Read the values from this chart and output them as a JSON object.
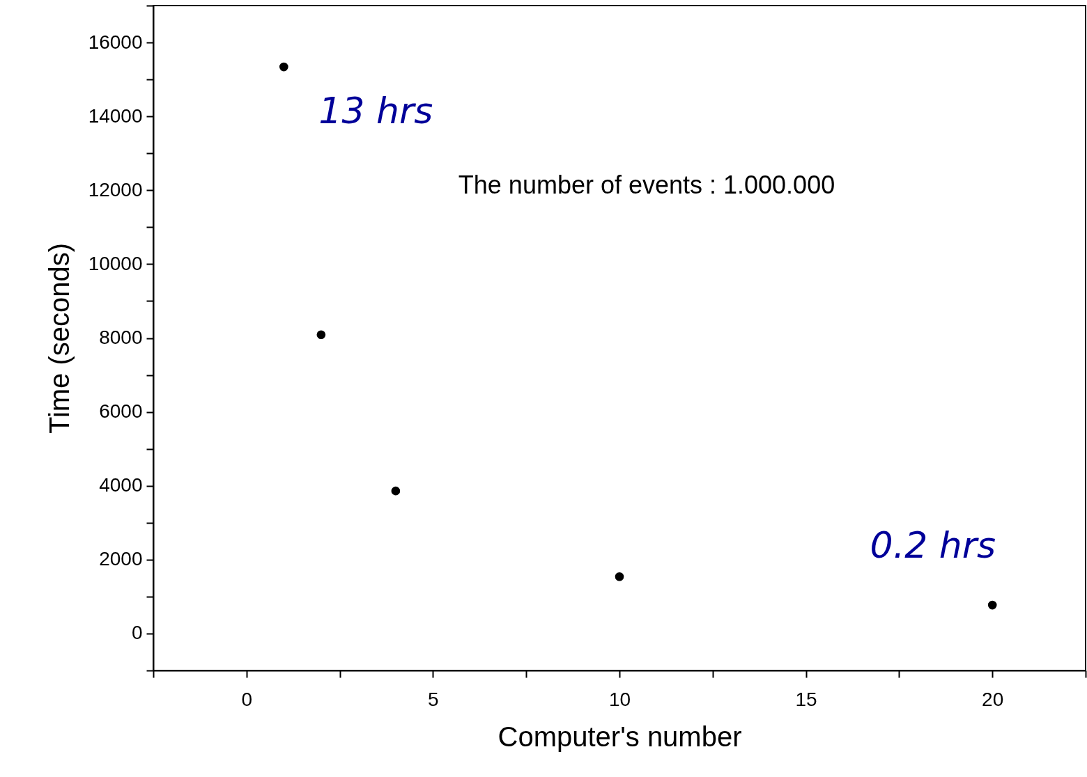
{
  "chart_data": {
    "type": "scatter",
    "xlabel": "Computer's number",
    "ylabel": "Time (seconds)",
    "x": [
      1,
      2,
      4,
      10,
      20
    ],
    "series": [
      {
        "color": "#000000",
        "values": [
          15340,
          8090,
          3860,
          1540,
          770
        ]
      }
    ],
    "marker": "circle",
    "grid": false,
    "xlim": [
      -2.5,
      22.5
    ],
    "ylim": [
      -1000,
      17000
    ],
    "xticks": [
      {
        "value": -2.5,
        "label": null
      },
      0,
      {
        "value": 2.5,
        "label": null
      },
      5,
      {
        "value": 7.5,
        "label": null
      },
      10,
      {
        "value": 12.5,
        "label": null
      },
      15,
      {
        "value": 17.5,
        "label": null
      },
      20,
      {
        "value": 22.5,
        "label": null
      }
    ],
    "yticks": [
      {
        "value": -1000,
        "label": null
      },
      0,
      {
        "value": 1000,
        "label": null
      },
      2000,
      {
        "value": 3000,
        "label": null
      },
      4000,
      {
        "value": 5000,
        "label": null
      },
      6000,
      {
        "value": 7000,
        "label": null
      },
      8000,
      {
        "value": 9000,
        "label": null
      },
      10000,
      {
        "value": 11000,
        "label": null
      },
      12000,
      {
        "value": 13000,
        "label": null
      },
      14000,
      {
        "value": 15000,
        "label": null
      },
      16000,
      {
        "value": 17000,
        "label": null
      }
    ],
    "annotations": [
      {
        "text": "13 hrs",
        "x": 1,
        "y": 15340
      },
      {
        "text": "0.2 hrs",
        "x": 20,
        "y": 770
      },
      "The number of events : 1.000.000"
    ]
  }
}
